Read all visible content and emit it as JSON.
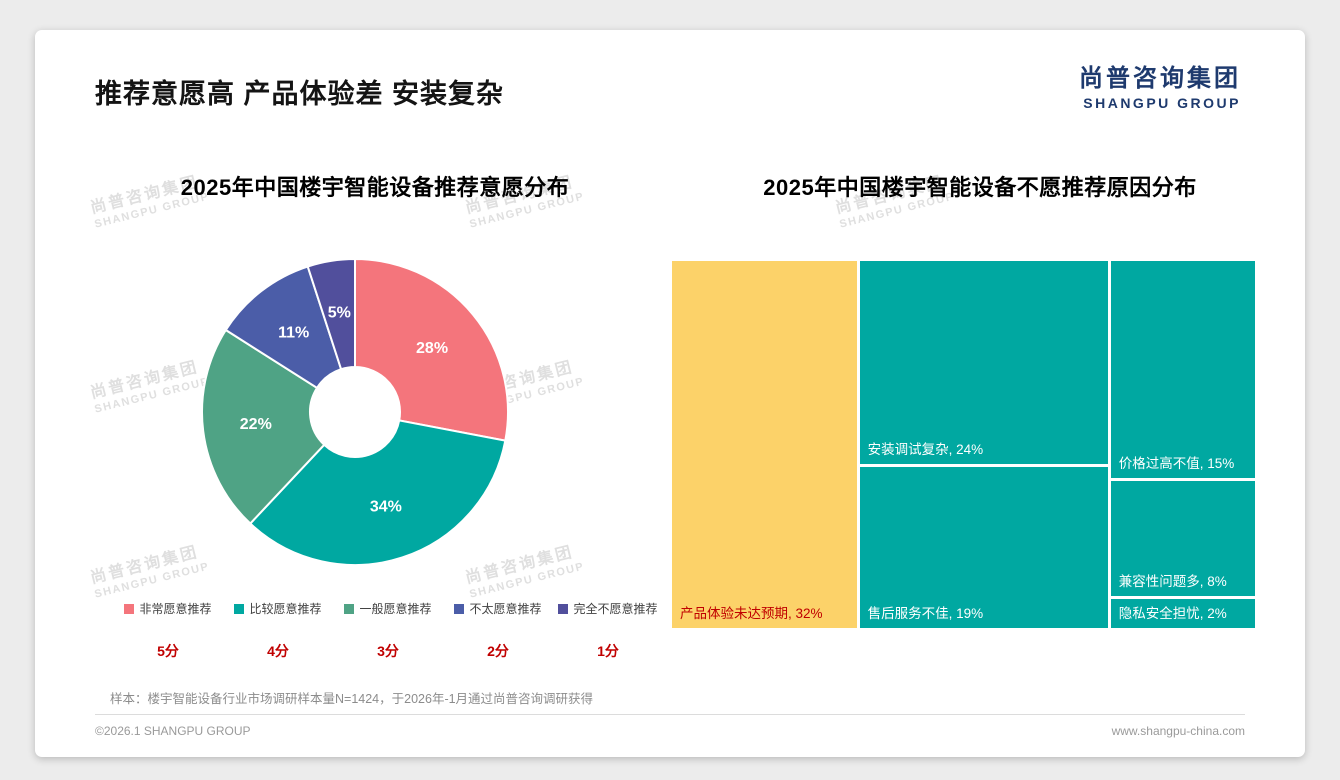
{
  "page": {
    "title": "推荐意愿高 产品体验差 安装复杂",
    "logo": {
      "cn": "尚普咨询集团",
      "en": "SHANGPU GROUP"
    },
    "watermark": {
      "cn": "尚普咨询集团",
      "en": "SHANGPU GROUP"
    },
    "sample_note": "样本：楼宇智能设备行业市场调研样本量N=1424，于2026年-1月通过尚普咨询调研获得",
    "footer": {
      "left": "©2026.1 SHANGPU GROUP",
      "right": "www.shangpu-china.com"
    }
  },
  "chart_data": [
    {
      "type": "pie",
      "subtype": "donut",
      "title": "2025年中国楼宇智能设备推荐意愿分布",
      "labels": [
        "非常愿意推荐",
        "比较愿意推荐",
        "一般愿意推荐",
        "不太愿意推荐",
        "完全不愿意推荐"
      ],
      "values": [
        28,
        34,
        22,
        11,
        5
      ],
      "colors": [
        "#F4757C",
        "#00A8A1",
        "#4FA385",
        "#4B5DA8",
        "#514F9C"
      ],
      "scores": [
        "5分",
        "4分",
        "3分",
        "2分",
        "1分"
      ],
      "score_color": "#C00000",
      "start_angle_deg": 0,
      "direction": "clockwise",
      "data_label_format": "percent",
      "data_label_color": "#FFFFFF",
      "legend_position": "bottom"
    },
    {
      "type": "treemap",
      "title": "2025年中国楼宇智能设备不愿推荐原因分布",
      "items": [
        {
          "label": "产品体验未达预期",
          "value": 32,
          "color": "#FCD269",
          "text_color": "#C00000"
        },
        {
          "label": "安装调试复杂",
          "value": 24,
          "color": "#00A8A1",
          "text_color": "#FFFFFF"
        },
        {
          "label": "售后服务不佳",
          "value": 19,
          "color": "#00A8A1",
          "text_color": "#FFFFFF"
        },
        {
          "label": "价格过高不值",
          "value": 15,
          "color": "#00A8A1",
          "text_color": "#FFFFFF"
        },
        {
          "label": "兼容性问题多",
          "value": 8,
          "color": "#00A8A1",
          "text_color": "#FFFFFF"
        },
        {
          "label": "隐私安全担忧",
          "value": 2,
          "color": "#00A8A1",
          "text_color": "#FFFFFF"
        }
      ],
      "columns": [
        [
          0
        ],
        [
          1,
          2
        ],
        [
          3,
          4,
          5
        ]
      ],
      "label_format": "{label}, {value}%"
    }
  ]
}
